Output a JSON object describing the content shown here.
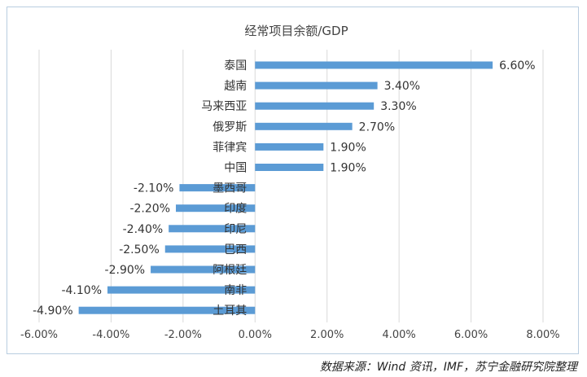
{
  "chart_data": {
    "type": "bar",
    "orientation": "horizontal",
    "title": "经常项目余额/GDP",
    "categories": [
      "泰国",
      "越南",
      "马来西亚",
      "俄罗斯",
      "菲律宾",
      "中国",
      "墨西哥",
      "印度",
      "印尼",
      "巴西",
      "阿根廷",
      "南非",
      "土耳其"
    ],
    "values": [
      6.6,
      3.4,
      3.3,
      2.7,
      1.9,
      1.9,
      -2.1,
      -2.2,
      -2.4,
      -2.5,
      -2.9,
      -4.1,
      -4.9
    ],
    "value_labels": [
      "6.60%",
      "3.40%",
      "3.30%",
      "2.70%",
      "1.90%",
      "1.90%",
      "-2.10%",
      "-2.20%",
      "-2.40%",
      "-2.50%",
      "-2.90%",
      "-4.10%",
      "-4.90%"
    ],
    "x_ticks": [
      -6,
      -4,
      -2,
      0,
      2,
      4,
      6,
      8
    ],
    "x_tick_labels": [
      "-6.00%",
      "-4.00%",
      "-2.00%",
      "0.00%",
      "2.00%",
      "4.00%",
      "6.00%",
      "8.00%"
    ],
    "xlim": [
      -6,
      8
    ],
    "grid": true,
    "bar_color": "#5b9bd5"
  },
  "source": "数据来源：Wind 资讯，IMF，苏宁金融研究院整理"
}
